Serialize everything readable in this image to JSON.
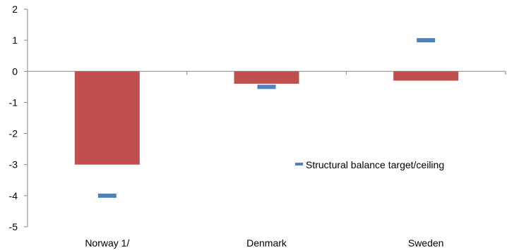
{
  "chart_data": {
    "type": "bar",
    "categories": [
      "Norway 1/",
      "Denmark",
      "Sweden"
    ],
    "ylim": [
      -5,
      2
    ],
    "yticks": [
      2,
      1,
      0,
      -1,
      -2,
      -3,
      -4,
      -5
    ],
    "grid": false,
    "legend_position": "inside-right",
    "series": [
      {
        "type": "bar",
        "values": [
          -3.0,
          -0.4,
          -0.3
        ],
        "color": "#c0504d"
      },
      {
        "type": "marker",
        "name": "Structural balance target/ceiling",
        "values": [
          -4.0,
          -0.5,
          1.0
        ],
        "color": "#4f81bd"
      }
    ]
  }
}
